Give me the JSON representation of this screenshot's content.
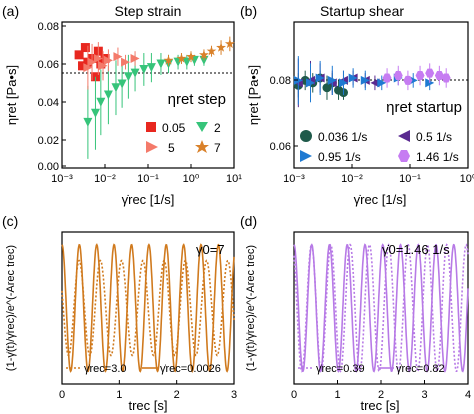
{
  "figure": {
    "panels": [
      {
        "letter": "(a)",
        "title": "Step strain",
        "xlabel": "γ̇rec [1/s]",
        "ylabel": "ηret [Pa•s]",
        "annotation": "ηret step",
        "xticks": [
          "10⁻³",
          "10⁻²",
          "10⁻¹",
          "10⁰",
          "10¹"
        ],
        "yticks": [
          "0.08",
          "0.06",
          "0.04",
          "0.02",
          "0.00"
        ],
        "legend": [
          "0.05",
          "2",
          "5",
          "7"
        ]
      },
      {
        "letter": "(b)",
        "title": "Startup shear",
        "xlabel": "γ̇rec [1/s]",
        "ylabel": "ηret [Pa•s]",
        "annotation": "ηret startup",
        "xticks": [
          "10⁻³",
          "10⁻²",
          "10⁻¹",
          "10⁰"
        ],
        "yticks": [
          "0.08",
          "0.06"
        ],
        "legend": [
          "0.036 1/s",
          "0.5 1/s",
          "0.95 1/s",
          "1.46 1/s"
        ]
      },
      {
        "letter": "(c)",
        "xlabel": "trec [s]",
        "ylabel": "(1-γ̇(t)/γ̇rec)/e^(-Arec trec)",
        "annotation": "γ0=7",
        "xticks": [
          "0",
          "1",
          "2",
          "3"
        ],
        "legend": [
          "γ̇rec=3.0",
          "γ̇rec=0.0026"
        ]
      },
      {
        "letter": "(d)",
        "xlabel": "trec [s]",
        "ylabel": "(1-γ̇(t)/γ̇rec)/e^(-Arec trec)",
        "annotation": "γ̇0=1.46 1/s",
        "xticks": [
          "0",
          "1",
          "2",
          "3",
          "4"
        ],
        "legend": [
          "γ̇rec=0.39",
          "γ̇rec=0.82"
        ]
      }
    ]
  },
  "colors": {
    "red": "#e8271f",
    "green": "#36c47a",
    "salmon": "#f47a6a",
    "orange": "#d9812a",
    "darkgreen": "#1f5a4a",
    "purple": "#5a2a90",
    "blue": "#1f7ad2",
    "lavender": "#c67cf2",
    "osc_orange": "#d07a1e",
    "osc_purple": "#b77ae6"
  },
  "chart_data": [
    {
      "panel": "a",
      "type": "scatter",
      "title": "Step strain",
      "xlabel": "γ̇rec [1/s]",
      "ylabel": "ηret [Pa•s]",
      "xscale": "log",
      "xlim": [
        0.001,
        10
      ],
      "ylim": [
        0.0,
        0.08
      ],
      "hline": 0.058,
      "series": [
        {
          "name": "0.05",
          "marker": "square",
          "color": "#e8271f",
          "x": [
            0.0025,
            0.003,
            0.0035,
            0.004,
            0.005,
            0.006,
            0.007,
            0.008,
            0.01
          ],
          "y": [
            0.062,
            0.056,
            0.066,
            0.058,
            0.06,
            0.05,
            0.064,
            0.057,
            0.06
          ]
        },
        {
          "name": "2",
          "marker": "triangle-down",
          "color": "#36c47a",
          "x": [
            0.004,
            0.006,
            0.008,
            0.012,
            0.018,
            0.025,
            0.035,
            0.05,
            0.08,
            0.12,
            0.2,
            0.3,
            0.5,
            0.8,
            1.2,
            2.0
          ],
          "y": [
            0.025,
            0.03,
            0.036,
            0.04,
            0.044,
            0.046,
            0.05,
            0.052,
            0.054,
            0.055,
            0.057,
            0.057,
            0.058,
            0.058,
            0.059,
            0.059
          ],
          "err": [
            0.02,
            0.02,
            0.018,
            0.016,
            0.015,
            0.013,
            0.012,
            0.01,
            0.009,
            0.008,
            0.006,
            0.005,
            0.004,
            0.004,
            0.003,
            0.003
          ]
        },
        {
          "name": "5",
          "marker": "triangle-right",
          "color": "#f47a6a",
          "x": [
            0.004,
            0.005,
            0.007,
            0.009,
            0.012,
            0.02,
            0.03,
            0.05
          ],
          "y": [
            0.055,
            0.058,
            0.06,
            0.056,
            0.059,
            0.061,
            0.058,
            0.06
          ],
          "err": [
            0.012,
            0.01,
            0.009,
            0.008,
            0.006,
            0.005,
            0.004,
            0.004
          ]
        },
        {
          "name": "7",
          "marker": "star",
          "color": "#d9812a",
          "x": [
            0.3,
            0.6,
            1.0,
            2.0,
            3.0,
            5.0,
            8.0
          ],
          "y": [
            0.059,
            0.06,
            0.061,
            0.062,
            0.064,
            0.066,
            0.068
          ],
          "err": [
            0.003,
            0.003,
            0.003,
            0.003,
            0.003,
            0.004,
            0.004
          ]
        }
      ]
    },
    {
      "panel": "b",
      "type": "scatter",
      "title": "Startup shear",
      "xlabel": "γ̇rec [1/s]",
      "ylabel": "ηret [Pa•s]",
      "xscale": "log",
      "xlim": [
        0.001,
        1.5
      ],
      "ylim": [
        0.045,
        0.105
      ],
      "hline": 0.08,
      "series": [
        {
          "name": "0.036 1/s",
          "marker": "circle",
          "color": "#1f5a4a",
          "x": [
            0.0012,
            0.0016,
            0.0022,
            0.003,
            0.004,
            0.005,
            0.0065,
            0.008
          ],
          "y": [
            0.079,
            0.081,
            0.08,
            0.082,
            0.078,
            0.08,
            0.077,
            0.076
          ],
          "err": [
            0.005,
            0.004,
            0.004,
            0.003,
            0.005,
            0.004,
            0.004,
            0.003
          ]
        },
        {
          "name": "0.5 1/s",
          "marker": "triangle-left",
          "color": "#5a2a90",
          "x": [
            0.0012,
            0.002,
            0.003,
            0.005,
            0.008,
            0.012,
            0.02,
            0.03
          ],
          "y": [
            0.08,
            0.081,
            0.082,
            0.08,
            0.081,
            0.082,
            0.081,
            0.08
          ],
          "err": [
            0.01,
            0.008,
            0.006,
            0.005,
            0.004,
            0.003,
            0.003,
            0.003
          ]
        },
        {
          "name": "0.95 1/s",
          "marker": "triangle-right",
          "color": "#1f7ad2",
          "x": [
            0.0012,
            0.002,
            0.003,
            0.005,
            0.008,
            0.012,
            0.02,
            0.04,
            0.08,
            0.15,
            0.3
          ],
          "y": [
            0.081,
            0.08,
            0.082,
            0.081,
            0.08,
            0.082,
            0.081,
            0.08,
            0.082,
            0.081,
            0.08
          ],
          "err": [
            0.01,
            0.008,
            0.007,
            0.006,
            0.005,
            0.004,
            0.004,
            0.003,
            0.003,
            0.003,
            0.003
          ]
        },
        {
          "name": "1.46 1/s",
          "marker": "hexagon",
          "color": "#c67cf2",
          "x": [
            0.05,
            0.08,
            0.12,
            0.2,
            0.3,
            0.45,
            0.6
          ],
          "y": [
            0.082,
            0.083,
            0.081,
            0.083,
            0.084,
            0.083,
            0.082
          ],
          "err": [
            0.004,
            0.004,
            0.004,
            0.004,
            0.004,
            0.004,
            0.004
          ]
        }
      ]
    },
    {
      "panel": "c",
      "type": "line",
      "xlabel": "trec [s]",
      "ylabel": "(1-γ̇(t)/γ̇rec)/e^(-Arec trec)",
      "xlim": [
        0,
        3
      ],
      "ylim": [
        -1.2,
        1.2
      ],
      "series": [
        {
          "name": "γ̇rec=3.0",
          "style": "dotted",
          "color": "#d07a1e",
          "amplitude": 0.75,
          "frequency_hz": 2.7,
          "phase": 1.2
        },
        {
          "name": "γ̇rec=0.0026",
          "style": "solid",
          "color": "#d07a1e",
          "amplitude": 1.0,
          "frequency_hz": 3.3,
          "phase": 0.0
        }
      ]
    },
    {
      "panel": "d",
      "type": "line",
      "xlabel": "trec [s]",
      "ylabel": "(1-γ̇(t)/γ̇rec)/e^(-Arec trec)",
      "xlim": [
        0,
        4
      ],
      "ylim": [
        -1.2,
        1.2
      ],
      "series": [
        {
          "name": "γ̇rec=0.39",
          "style": "dotted",
          "color": "#b77ae6",
          "amplitude": 1.0,
          "frequency_hz": 2.25,
          "phase": 0.6
        },
        {
          "name": "γ̇rec=0.82",
          "style": "solid",
          "color": "#b77ae6",
          "amplitude": 1.0,
          "frequency_hz": 2.45,
          "phase": 0.0
        }
      ]
    }
  ]
}
